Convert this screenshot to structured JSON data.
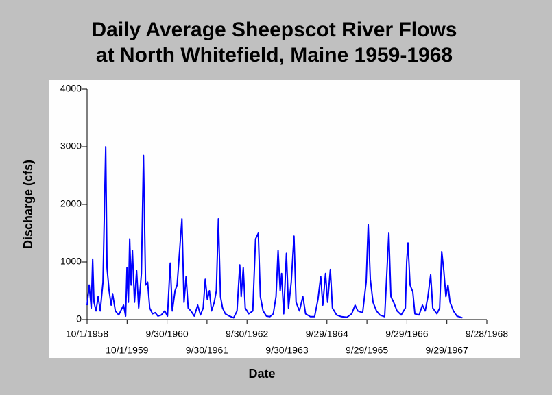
{
  "chart_data": {
    "type": "line",
    "title": [
      "Daily Average Sheepscot River Flows",
      "at North Whitefield, Maine 1959-1968"
    ],
    "x_label": "Date",
    "y_label": "Discharge (cfs)",
    "xlim": [
      "1958-10-01",
      "1968-09-28"
    ],
    "xticks": [
      {
        "value": "1958-10-01",
        "label": "10/1/1958"
      },
      {
        "value": "1959-10-01",
        "label": "10/1/1959"
      },
      {
        "value": "1960-09-30",
        "label": "9/30/1960"
      },
      {
        "value": "1961-09-30",
        "label": "9/30/1961"
      },
      {
        "value": "1962-09-30",
        "label": "9/30/1962"
      },
      {
        "value": "1963-09-30",
        "label": "9/30/1963"
      },
      {
        "value": "1964-09-29",
        "label": "9/29/1964"
      },
      {
        "value": "1965-09-29",
        "label": "9/29/1965"
      },
      {
        "value": "1966-09-29",
        "label": "9/29/1966"
      },
      {
        "value": "1967-09-29",
        "label": "9/29/1967"
      },
      {
        "value": "1968-09-28",
        "label": "9/28/1968"
      }
    ],
    "ylim": [
      0,
      4000
    ],
    "yticks": [
      0,
      1000,
      2000,
      3000,
      4000
    ],
    "series": [
      {
        "color": "#0000ff",
        "x": [
          "1958-10-01",
          "1958-10-20",
          "1958-11-08",
          "1958-11-21",
          "1958-12-03",
          "1958-12-22",
          "1959-01-10",
          "1959-01-29",
          "1959-02-23",
          "1959-03-20",
          "1959-04-01",
          "1959-04-20",
          "1959-05-09",
          "1959-05-22",
          "1959-06-16",
          "1959-07-17",
          "1959-08-17",
          "1959-08-30",
          "1959-09-18",
          "1959-09-30",
          "1959-10-13",
          "1959-10-25",
          "1959-11-07",
          "1959-11-19",
          "1959-12-08",
          "1959-12-27",
          "1960-01-15",
          "1960-02-09",
          "1960-02-28",
          "1960-03-18",
          "1960-04-06",
          "1960-04-25",
          "1960-05-20",
          "1960-06-14",
          "1960-07-09",
          "1960-08-09",
          "1960-09-09",
          "1960-10-04",
          "1960-10-29",
          "1960-11-17",
          "1960-12-12",
          "1960-12-31",
          "1961-02-13",
          "1961-03-04",
          "1961-03-23",
          "1961-04-11",
          "1961-05-06",
          "1961-06-06",
          "1961-07-07",
          "1961-08-01",
          "1961-08-26",
          "1961-09-14",
          "1961-10-03",
          "1961-10-22",
          "1961-11-10",
          "1961-12-05",
          "1961-12-24",
          "1962-01-12",
          "1962-01-31",
          "1962-02-19",
          "1962-03-16",
          "1962-04-23",
          "1962-05-31",
          "1962-07-01",
          "1962-07-26",
          "1962-08-08",
          "1962-08-27",
          "1962-09-14",
          "1962-10-16",
          "1962-11-22",
          "1962-12-17",
          "1962-12-30",
          "1963-01-11",
          "1963-01-30",
          "1963-02-24",
          "1963-03-27",
          "1963-04-27",
          "1963-05-28",
          "1963-06-22",
          "1963-07-11",
          "1963-07-30",
          "1963-08-12",
          "1963-08-31",
          "1963-09-25",
          "1963-10-14",
          "1963-11-08",
          "1963-12-03",
          "1963-12-22",
          "1964-01-22",
          "1964-02-22",
          "1964-03-18",
          "1964-05-01",
          "1964-06-08",
          "1964-07-09",
          "1964-08-03",
          "1964-08-22",
          "1964-09-16",
          "1964-10-05",
          "1964-10-30",
          "1964-11-18",
          "1964-12-26",
          "1965-02-08",
          "1965-03-30",
          "1965-05-13",
          "1965-06-13",
          "1965-07-08",
          "1965-08-21",
          "1965-09-22",
          "1965-10-11",
          "1965-10-30",
          "1965-11-24",
          "1965-12-25",
          "1966-01-25",
          "1966-03-10",
          "1966-04-17",
          "1966-05-06",
          "1966-05-31",
          "1966-07-01",
          "1966-08-08",
          "1966-09-15",
          "1966-09-27",
          "1966-10-09",
          "1966-10-28",
          "1966-11-22",
          "1966-12-11",
          "1967-01-18",
          "1967-02-18",
          "1967-03-15",
          "1967-04-09",
          "1967-05-04",
          "1967-05-23",
          "1967-06-30",
          "1967-07-25",
          "1967-08-13",
          "1967-09-01",
          "1967-09-20",
          "1967-10-09",
          "1967-10-28",
          "1967-11-28",
          "1967-12-30",
          "1968-02-18"
        ],
        "values": [
          250,
          600,
          200,
          1050,
          300,
          150,
          400,
          150,
          650,
          3000,
          900,
          500,
          250,
          450,
          150,
          80,
          200,
          250,
          60,
          900,
          300,
          1400,
          600,
          1200,
          300,
          850,
          200,
          800,
          2850,
          600,
          650,
          200,
          100,
          120,
          60,
          80,
          150,
          60,
          980,
          150,
          500,
          600,
          1750,
          300,
          750,
          200,
          150,
          60,
          250,
          80,
          200,
          700,
          350,
          500,
          150,
          300,
          500,
          1750,
          400,
          200,
          100,
          60,
          30,
          150,
          950,
          400,
          900,
          200,
          100,
          150,
          1400,
          1450,
          1500,
          400,
          150,
          60,
          50,
          100,
          400,
          1200,
          500,
          800,
          100,
          1150,
          200,
          650,
          1450,
          300,
          150,
          400,
          100,
          50,
          50,
          350,
          750,
          250,
          800,
          300,
          870,
          200,
          80,
          50,
          40,
          100,
          250,
          150,
          120,
          650,
          1650,
          700,
          300,
          150,
          80,
          50,
          1500,
          400,
          300,
          150,
          80,
          200,
          1000,
          1330,
          600,
          480,
          100,
          80,
          250,
          150,
          400,
          780,
          200,
          100,
          200,
          1180,
          850,
          400,
          600,
          300,
          150,
          60,
          30
        ]
      }
    ]
  }
}
